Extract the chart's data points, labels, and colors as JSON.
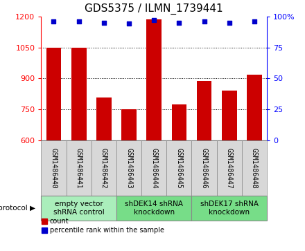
{
  "title": "GDS5375 / ILMN_1739441",
  "samples": [
    "GSM1486440",
    "GSM1486441",
    "GSM1486442",
    "GSM1486443",
    "GSM1486444",
    "GSM1486445",
    "GSM1486446",
    "GSM1486447",
    "GSM1486448"
  ],
  "counts": [
    1047,
    1047,
    808,
    752,
    1185,
    775,
    888,
    843,
    918
  ],
  "percentile_ranks": [
    96,
    96,
    95,
    94,
    97,
    95,
    96,
    95,
    96
  ],
  "ylim_left": [
    600,
    1200
  ],
  "ylim_right": [
    0,
    100
  ],
  "yticks_left": [
    600,
    750,
    900,
    1050,
    1200
  ],
  "yticks_right": [
    0,
    25,
    50,
    75,
    100
  ],
  "bar_color": "#cc0000",
  "dot_color": "#0000cc",
  "protocols": [
    {
      "label": "empty vector\nshRNA control",
      "start": 0,
      "end": 3,
      "color": "#aaeebb"
    },
    {
      "label": "shDEK14 shRNA\nknockdown",
      "start": 3,
      "end": 6,
      "color": "#77dd88"
    },
    {
      "label": "shDEK17 shRNA\nknockdown",
      "start": 6,
      "end": 9,
      "color": "#77dd88"
    }
  ],
  "protocol_label": "protocol",
  "legend_count_label": "count",
  "legend_percentile_label": "percentile rank within the sample",
  "title_fontsize": 11,
  "sample_fontsize": 7,
  "protocol_fontsize": 7.5,
  "legend_fontsize": 7,
  "yticklabel_fontsize": 8
}
